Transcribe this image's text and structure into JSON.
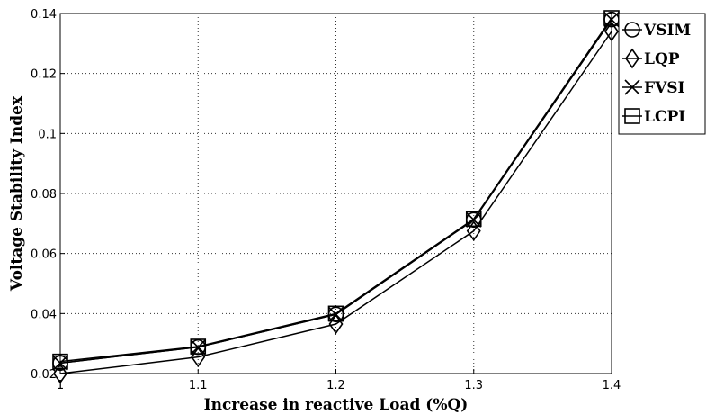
{
  "chart_data": {
    "type": "line",
    "title": "",
    "xlabel": "Increase in reactive Load (%Q)",
    "ylabel": "Voltage Stability Index",
    "x": [
      1,
      1.1,
      1.2,
      1.3,
      1.4
    ],
    "xlim": [
      1,
      1.4
    ],
    "ylim": [
      0.02,
      0.14
    ],
    "x_ticks": [
      "1",
      "1.1",
      "1.2",
      "1.3",
      "1.4"
    ],
    "y_ticks": [
      "0.02",
      "0.04",
      "0.06",
      "0.08",
      "0.1",
      "0.12",
      "0.14"
    ],
    "grid": true,
    "legend_position": "top-right",
    "series": [
      {
        "name": "VSIM",
        "marker": "circle",
        "values": [
          0.0235,
          0.0288,
          0.0397,
          0.0712,
          0.138
        ]
      },
      {
        "name": "LQP",
        "marker": "diamond",
        "values": [
          0.02,
          0.0255,
          0.0365,
          0.0675,
          0.134
        ]
      },
      {
        "name": "FVSI",
        "marker": "x",
        "values": [
          0.0235,
          0.0288,
          0.0397,
          0.0712,
          0.138
        ]
      },
      {
        "name": "LCPI",
        "marker": "square",
        "values": [
          0.024,
          0.029,
          0.04,
          0.0715,
          0.1385
        ]
      }
    ]
  }
}
